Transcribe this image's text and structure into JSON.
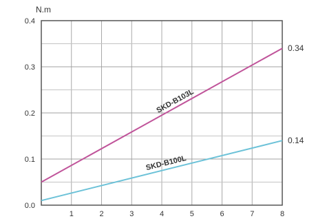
{
  "chart_data": {
    "type": "line",
    "ylabel": "N.m",
    "xlim": [
      0,
      8
    ],
    "ylim": [
      0,
      0.4
    ],
    "x_ticks": [
      "1",
      "2",
      "3",
      "4",
      "5",
      "6",
      "7",
      "8"
    ],
    "y_ticks": [
      "0.0",
      "0.1",
      "0.2",
      "0.3",
      "0.4"
    ],
    "grid": true,
    "series": [
      {
        "name": "SKD-B103L",
        "color": "#c0549a",
        "x": [
          0,
          8
        ],
        "y": [
          0.05,
          0.34
        ],
        "end_label": "0.34"
      },
      {
        "name": "SKD-B100L",
        "color": "#6cc2d8",
        "x": [
          0,
          8
        ],
        "y": [
          0.01,
          0.14
        ],
        "end_label": "0.14"
      }
    ]
  }
}
